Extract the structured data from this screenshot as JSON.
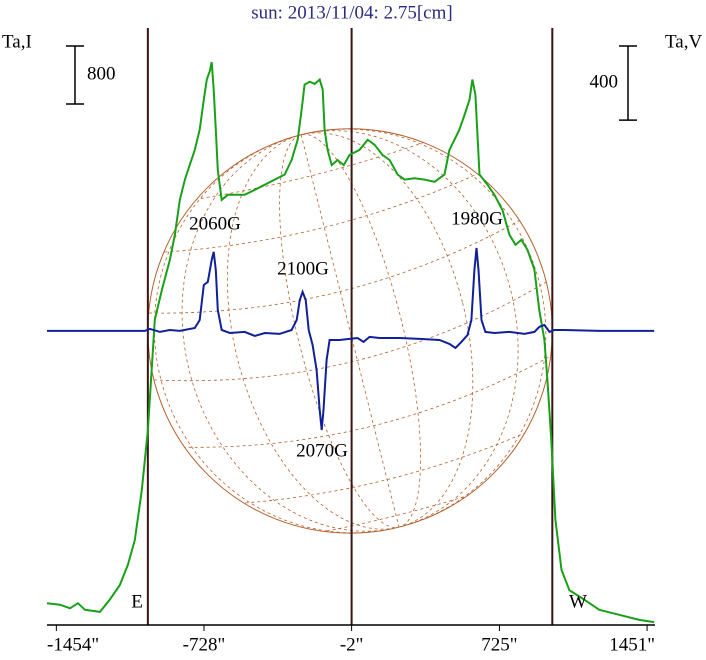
{
  "chart_data": {
    "type": "line",
    "title": "sun: 2013/11/04: 2.75[cm]",
    "ylabel": "Ta,I",
    "y2label": "Ta,V",
    "xlim": [
      -1500,
      1490
    ],
    "xticks": [
      {
        "value": -1454,
        "label": "-1454\""
      },
      {
        "value": -728,
        "label": "-728\""
      },
      {
        "value": -2,
        "label": "-2\""
      },
      {
        "value": 725,
        "label": "725\""
      },
      {
        "value": 1451,
        "label": "1451\""
      }
    ],
    "ylim": [
      0,
      8230
    ],
    "y2lim": [
      -1588,
      1636
    ],
    "scale_bars": [
      {
        "label": "800",
        "value": 800
      },
      {
        "label": "400",
        "value": 400,
        "axis": "y2"
      }
    ],
    "vlines": [
      -1004,
      -2,
      985
    ],
    "vline_color": "#3a1414",
    "disk_color": "#b5602e",
    "annotations": [
      "2060G",
      "2100G",
      "1980G",
      "2070G",
      "E",
      "W"
    ],
    "series": [
      {
        "name": "Ta,I",
        "color": "#19a019",
        "x": [
          -1500,
          -1436,
          -1387,
          -1348,
          -1313,
          -1240,
          -1191,
          -1142,
          -1102,
          -1068,
          -1034,
          -1004,
          -970,
          -935,
          -896,
          -871,
          -847,
          -822,
          -798,
          -773,
          -749,
          -729,
          -714,
          -700,
          -690,
          -680,
          -670,
          -660,
          -641,
          -611,
          -577,
          -528,
          -478,
          -429,
          -380,
          -331,
          -297,
          -267,
          -248,
          -233,
          -208,
          -184,
          -159,
          -144,
          -135,
          -120,
          -100,
          -71,
          -41,
          -12,
          37,
          77,
          111,
          150,
          185,
          224,
          258,
          307,
          357,
          406,
          455,
          479,
          504,
          528,
          553,
          578,
          592,
          607,
          627,
          666,
          700,
          740,
          774,
          804,
          833,
          863,
          897,
          921,
          946,
          961,
          980,
          1000,
          1030,
          1069,
          1142,
          1216,
          1314,
          1413,
          1486
        ],
        "values": [
          300,
          280,
          230,
          300,
          210,
          180,
          350,
          550,
          830,
          1170,
          1860,
          2690,
          4210,
          4620,
          5030,
          5380,
          5860,
          6140,
          6340,
          6550,
          6830,
          7240,
          7520,
          7630,
          7760,
          7380,
          6830,
          6270,
          5860,
          5930,
          5930,
          5930,
          6000,
          6070,
          6140,
          6210,
          6410,
          6690,
          7100,
          7450,
          7490,
          7460,
          7520,
          7380,
          6830,
          6550,
          6340,
          6410,
          6340,
          6480,
          6550,
          6690,
          6620,
          6480,
          6410,
          6210,
          6140,
          6160,
          6140,
          6110,
          6210,
          6550,
          6690,
          6830,
          7030,
          7240,
          7520,
          7310,
          6210,
          6070,
          5930,
          5720,
          5380,
          5240,
          5310,
          5170,
          4900,
          4340,
          3930,
          3380,
          2550,
          1450,
          760,
          480,
          350,
          210,
          140,
          70,
          40
        ]
      },
      {
        "name": "Ta,V",
        "color": "#10209a",
        "axis": "y2",
        "x": [
          -1500,
          -1019,
          -994,
          -945,
          -896,
          -847,
          -773,
          -749,
          -729,
          -709,
          -690,
          -680,
          -670,
          -660,
          -641,
          -601,
          -528,
          -478,
          -429,
          -356,
          -297,
          -272,
          -257,
          -243,
          -228,
          -213,
          -194,
          -174,
          -159,
          -149,
          -140,
          -125,
          -110,
          -61,
          -12,
          27,
          57,
          86,
          136,
          234,
          332,
          430,
          479,
          509,
          538,
          568,
          587,
          602,
          612,
          622,
          637,
          656,
          700,
          774,
          848,
          897,
          921,
          946,
          971,
          995,
          1044,
          1216,
          1486
        ],
        "values": [
          0,
          0,
          11,
          -5,
          5,
          0,
          16,
          59,
          248,
          265,
          383,
          427,
          329,
          113,
          5,
          -11,
          -5,
          -27,
          -11,
          -16,
          5,
          59,
          167,
          211,
          167,
          5,
          -76,
          -211,
          -427,
          -535,
          -427,
          -157,
          -49,
          -49,
          -43,
          -38,
          -59,
          -32,
          -38,
          -38,
          -43,
          -49,
          -70,
          -92,
          -59,
          -22,
          59,
          329,
          448,
          329,
          59,
          -5,
          -11,
          -5,
          -16,
          -5,
          22,
          32,
          -5,
          5,
          5,
          0,
          0
        ]
      }
    ]
  }
}
